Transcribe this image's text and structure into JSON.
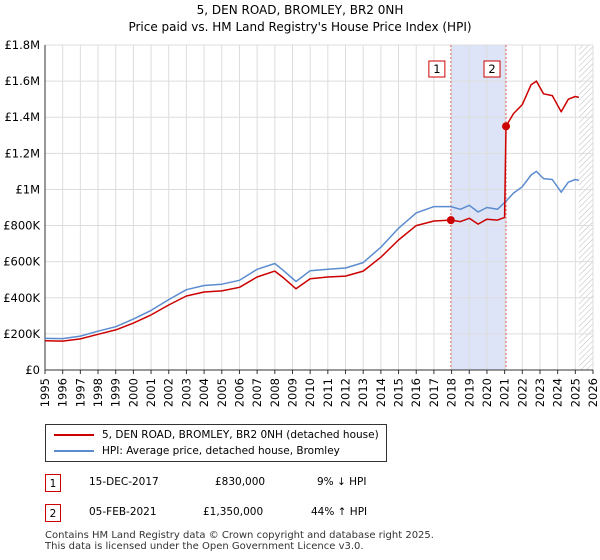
{
  "chart_data": {
    "type": "line",
    "title": "5, DEN ROAD, BROMLEY, BR2 0NH",
    "subtitle": "Price paid vs. HM Land Registry's House Price Index (HPI)",
    "xlim": [
      1995,
      2026
    ],
    "ylim": [
      0,
      1800000
    ],
    "x_ticks": [
      "1995",
      "1996",
      "1997",
      "1998",
      "1999",
      "2000",
      "2001",
      "2002",
      "2003",
      "2004",
      "2005",
      "2006",
      "2007",
      "2008",
      "2009",
      "2010",
      "2011",
      "2012",
      "2013",
      "2014",
      "2015",
      "2016",
      "2017",
      "2018",
      "2019",
      "2020",
      "2021",
      "2022",
      "2023",
      "2024",
      "2025",
      "2026"
    ],
    "y_ticks": [
      {
        "value": 0,
        "label": "£0"
      },
      {
        "value": 200000,
        "label": "£200K"
      },
      {
        "value": 400000,
        "label": "£400K"
      },
      {
        "value": 600000,
        "label": "£600K"
      },
      {
        "value": 800000,
        "label": "£800K"
      },
      {
        "value": 1000000,
        "label": "£1M"
      },
      {
        "value": 1200000,
        "label": "£1.2M"
      },
      {
        "value": 1400000,
        "label": "£1.4M"
      },
      {
        "value": 1600000,
        "label": "£1.6M"
      },
      {
        "value": 1800000,
        "label": "£1.8M"
      }
    ],
    "grid": true,
    "shaded_region": {
      "from": 2017.96,
      "to": 2021.1,
      "color": "#dde4f7"
    },
    "future_hatch_from": 2025.2,
    "series": [
      {
        "name": "5, DEN ROAD, BROMLEY, BR2 0NH (detached house)",
        "color": "#cc0000",
        "points": [
          [
            1995.0,
            162000
          ],
          [
            1996.0,
            160000
          ],
          [
            1997.0,
            172000
          ],
          [
            1998.0,
            198000
          ],
          [
            1999.0,
            222000
          ],
          [
            2000.0,
            260000
          ],
          [
            2001.0,
            305000
          ],
          [
            2002.0,
            360000
          ],
          [
            2003.0,
            410000
          ],
          [
            2004.0,
            432000
          ],
          [
            2005.0,
            438000
          ],
          [
            2006.0,
            458000
          ],
          [
            2007.0,
            515000
          ],
          [
            2008.0,
            548000
          ],
          [
            2008.5,
            510000
          ],
          [
            2009.2,
            450000
          ],
          [
            2010.0,
            505000
          ],
          [
            2011.0,
            515000
          ],
          [
            2012.0,
            520000
          ],
          [
            2013.0,
            548000
          ],
          [
            2014.0,
            625000
          ],
          [
            2015.0,
            720000
          ],
          [
            2016.0,
            800000
          ],
          [
            2017.0,
            825000
          ],
          [
            2017.96,
            830000
          ],
          [
            2018.5,
            822000
          ],
          [
            2019.0,
            840000
          ],
          [
            2019.5,
            808000
          ],
          [
            2020.0,
            835000
          ],
          [
            2020.6,
            830000
          ],
          [
            2021.0,
            845000
          ],
          [
            2021.08,
            1350000
          ],
          [
            2021.5,
            1420000
          ],
          [
            2022.0,
            1470000
          ],
          [
            2022.5,
            1580000
          ],
          [
            2022.8,
            1600000
          ],
          [
            2023.2,
            1530000
          ],
          [
            2023.7,
            1520000
          ],
          [
            2024.2,
            1430000
          ],
          [
            2024.6,
            1500000
          ],
          [
            2025.0,
            1515000
          ],
          [
            2025.2,
            1510000
          ]
        ]
      },
      {
        "name": "HPI: Average price, detached house, Bromley",
        "color": "#5b8ccf",
        "points": [
          [
            1995.0,
            175000
          ],
          [
            1996.0,
            174000
          ],
          [
            1997.0,
            188000
          ],
          [
            1998.0,
            215000
          ],
          [
            1999.0,
            240000
          ],
          [
            2000.0,
            282000
          ],
          [
            2001.0,
            330000
          ],
          [
            2002.0,
            390000
          ],
          [
            2003.0,
            445000
          ],
          [
            2004.0,
            468000
          ],
          [
            2005.0,
            475000
          ],
          [
            2006.0,
            497000
          ],
          [
            2007.0,
            558000
          ],
          [
            2008.0,
            590000
          ],
          [
            2008.5,
            550000
          ],
          [
            2009.2,
            490000
          ],
          [
            2010.0,
            550000
          ],
          [
            2011.0,
            558000
          ],
          [
            2012.0,
            565000
          ],
          [
            2013.0,
            595000
          ],
          [
            2014.0,
            680000
          ],
          [
            2015.0,
            785000
          ],
          [
            2016.0,
            870000
          ],
          [
            2017.0,
            905000
          ],
          [
            2017.96,
            905000
          ],
          [
            2018.5,
            890000
          ],
          [
            2019.0,
            912000
          ],
          [
            2019.5,
            875000
          ],
          [
            2020.0,
            900000
          ],
          [
            2020.6,
            890000
          ],
          [
            2021.08,
            935000
          ],
          [
            2021.5,
            980000
          ],
          [
            2022.0,
            1015000
          ],
          [
            2022.5,
            1080000
          ],
          [
            2022.8,
            1100000
          ],
          [
            2023.2,
            1060000
          ],
          [
            2023.7,
            1055000
          ],
          [
            2024.2,
            985000
          ],
          [
            2024.6,
            1040000
          ],
          [
            2025.0,
            1055000
          ],
          [
            2025.2,
            1050000
          ]
        ]
      }
    ],
    "sales": [
      {
        "label": "1",
        "x": 2017.96,
        "y": 830000
      },
      {
        "label": "2",
        "x": 2021.08,
        "y": 1350000
      }
    ]
  },
  "legend": {
    "property": "5, DEN ROAD, BROMLEY, BR2 0NH (detached house)",
    "hpi": "HPI: Average price, detached house, Bromley"
  },
  "transactions": [
    {
      "num": "1",
      "date": "15-DEC-2017",
      "price": "£830,000",
      "hpi": "9% ↓ HPI"
    },
    {
      "num": "2",
      "date": "05-FEB-2021",
      "price": "£1,350,000",
      "hpi": "44% ↑ HPI"
    }
  ],
  "footer": {
    "line1": "Contains HM Land Registry data © Crown copyright and database right 2025.",
    "line2": "This data is licensed under the Open Government Licence v3.0."
  },
  "colors": {
    "property": "#cc0000",
    "hpi": "#5b8ccf",
    "shade": "#dde4f7"
  }
}
